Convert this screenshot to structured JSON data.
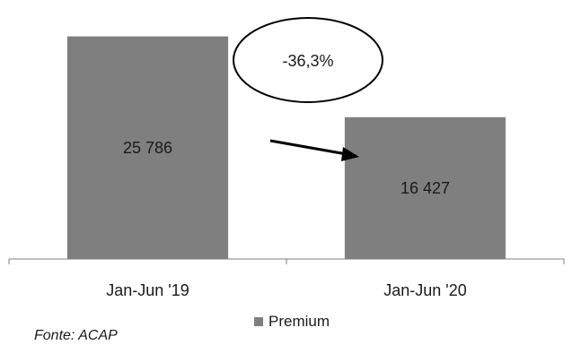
{
  "chart_data": {
    "type": "bar",
    "categories": [
      "Jan-Jun '19",
      "Jan-Jun '20"
    ],
    "series": [
      {
        "name": "Premium",
        "values": [
          25786,
          16427
        ],
        "value_labels": [
          "25 786",
          "16 427"
        ],
        "color": "#7f7f7f"
      }
    ],
    "ylim": [
      0,
      30000
    ],
    "grid": false,
    "legend": "bottom",
    "annotation": {
      "text": "-36,3%",
      "shape": "ellipse",
      "arrow": "right"
    },
    "source": "Fonte: ACAP"
  }
}
